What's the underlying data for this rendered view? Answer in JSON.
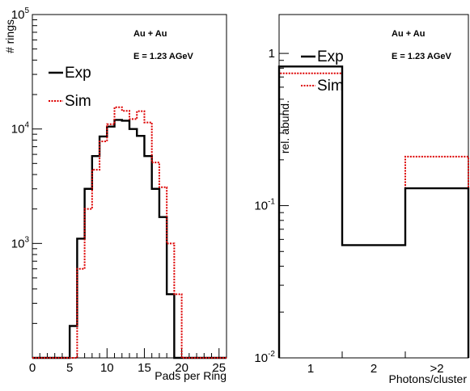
{
  "chart_data": [
    {
      "type": "histogram",
      "panel": "left",
      "log_y": true,
      "xlabel": "Pads per Ring",
      "ylabel": "# rings",
      "xlim": [
        0,
        26
      ],
      "ylim": [
        100,
        100000
      ],
      "x_ticks": [
        "0",
        "5",
        "10",
        "15",
        "20",
        "25"
      ],
      "y_ticks": [
        {
          "value": 1000,
          "label": "10",
          "exp": "3"
        },
        {
          "value": 10000,
          "label": "10",
          "exp": "4"
        },
        {
          "value": 100000,
          "label": "10",
          "exp": "5"
        }
      ],
      "annotations": [
        "Au + Au",
        "E = 1.23 AGeV"
      ],
      "legend": {
        "position": "top-left"
      },
      "bin_edges": [
        0,
        1,
        2,
        3,
        4,
        5,
        6,
        7,
        8,
        9,
        10,
        11,
        12,
        13,
        14,
        15,
        16,
        17,
        18,
        19,
        20,
        21,
        22,
        23,
        24,
        25,
        26
      ],
      "series": [
        {
          "name": "Exp",
          "color": "#000000",
          "style": "solid",
          "values": [
            100,
            100,
            100,
            100,
            100,
            190,
            1100,
            3000,
            5800,
            8600,
            10500,
            12000,
            11800,
            10000,
            8700,
            5800,
            3000,
            1700,
            360,
            100,
            100,
            100,
            100,
            100,
            100,
            100
          ]
        },
        {
          "name": "Sim",
          "color": "#dd0000",
          "style": "dotted",
          "values": [
            100,
            100,
            100,
            100,
            100,
            100,
            600,
            2000,
            4400,
            7800,
            11000,
            15500,
            14400,
            12200,
            14300,
            11400,
            5100,
            3100,
            1000,
            360,
            100,
            100,
            100,
            100,
            100,
            100
          ]
        }
      ]
    },
    {
      "type": "histogram",
      "panel": "right",
      "log_y": true,
      "xlabel": "Photons/cluster",
      "ylabel": "rel. abund.",
      "ylim": [
        0.01,
        1.8
      ],
      "categories": [
        "1",
        "2",
        ">2"
      ],
      "y_ticks": [
        {
          "value": 0.01,
          "label": "10",
          "exp": "-2"
        },
        {
          "value": 0.1,
          "label": "10",
          "exp": "-1"
        },
        {
          "value": 1,
          "label": "1",
          "exp": ""
        }
      ],
      "annotations": [
        "Au + Au",
        "E = 1.23 AGeV"
      ],
      "legend": {
        "position": "top-left"
      },
      "series": [
        {
          "name": "Exp",
          "color": "#000000",
          "style": "solid",
          "values": [
            0.82,
            0.055,
            0.13
          ]
        },
        {
          "name": "Sim",
          "color": "#dd0000",
          "style": "dotted",
          "values": [
            0.74,
            0.055,
            0.21
          ]
        }
      ]
    }
  ]
}
